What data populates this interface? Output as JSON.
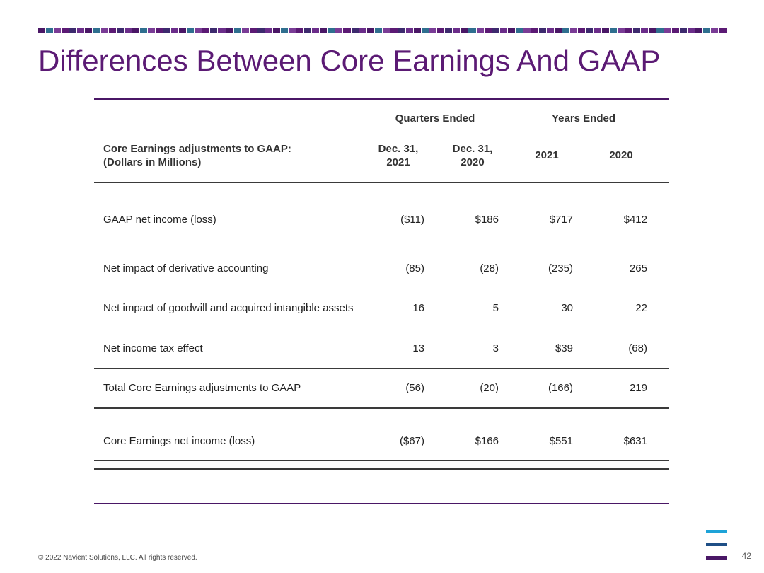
{
  "title": "Differences Between Core Earnings And GAAP",
  "band_colors": [
    "#4a1766",
    "#6b2d8a",
    "#2f6f8f",
    "#5b1a74",
    "#7a3c96",
    "#3d2a6e"
  ],
  "table": {
    "group_headers": {
      "quarters": "Quarters Ended",
      "years": "Years Ended"
    },
    "label_header": [
      "Core Earnings adjustments to GAAP:",
      "(Dollars in Millions)"
    ],
    "col_headers": [
      [
        "Dec. 31,",
        "2021"
      ],
      [
        "Dec. 31,",
        "2020"
      ],
      [
        "2021"
      ],
      [
        "2020"
      ]
    ],
    "rows": [
      {
        "label": "GAAP net income (loss)",
        "values": [
          "($11)",
          "$186",
          "$717",
          "$412"
        ]
      },
      {
        "label": "Net impact of derivative accounting",
        "values": [
          "(85)",
          "(28)",
          "(235)",
          "265"
        ]
      },
      {
        "label": "Net impact of goodwill and acquired intangible assets",
        "values": [
          "16",
          "5",
          "30",
          "22"
        ]
      },
      {
        "label": "Net income tax effect",
        "values": [
          "13",
          "3",
          "$39",
          "(68)"
        ]
      },
      {
        "label": "Total Core Earnings adjustments to GAAP",
        "values": [
          "(56)",
          "(20)",
          "(166)",
          "219"
        ]
      },
      {
        "label": "Core Earnings net income (loss)",
        "values": [
          "($67)",
          "$166",
          "$551",
          "$631"
        ]
      }
    ]
  },
  "footer": "© 2022 Navient Solutions, LLC. All rights reserved.",
  "page_number": "42",
  "logo_colors": [
    "#1ea3d8",
    "#1f4f86",
    "#4a1766"
  ]
}
